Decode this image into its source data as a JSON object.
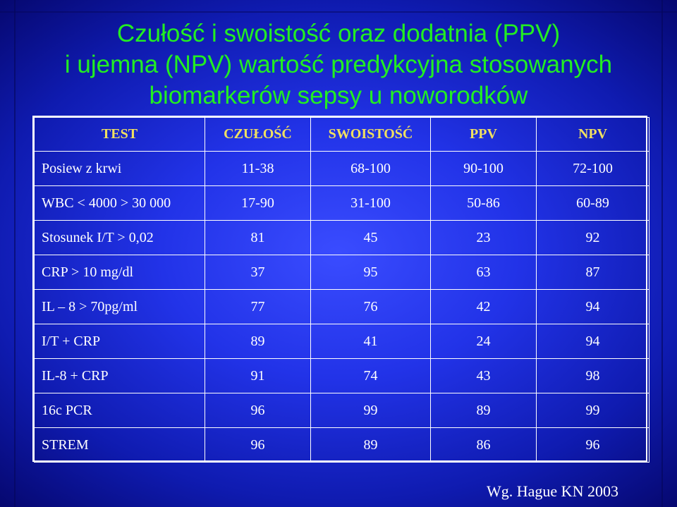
{
  "title": {
    "line1": "Czułość i swoistość oraz dodatnia (PPV)",
    "line2": "i ujemna (NPV) wartość predykcyjna stosowanych",
    "line3": "biomarkerów sepsy u noworodków"
  },
  "table": {
    "headers": [
      "TEST",
      "CZUŁOŚĆ",
      "SWOISTOŚĆ",
      "PPV",
      "NPV"
    ],
    "rows": [
      [
        "Posiew z krwi",
        "11-38",
        "68-100",
        "90-100",
        "72-100"
      ],
      [
        "WBC < 4000 > 30 000",
        "17-90",
        "31-100",
        "50-86",
        "60-89"
      ],
      [
        "Stosunek I/T > 0,02",
        "81",
        "45",
        "23",
        "92"
      ],
      [
        "CRP > 10 mg/dl",
        "37",
        "95",
        "63",
        "87"
      ],
      [
        "IL – 8 > 70pg/ml",
        "77",
        "76",
        "42",
        "94"
      ],
      [
        "I/T + CRP",
        "89",
        "41",
        "24",
        "94"
      ],
      [
        "IL-8 + CRP",
        "91",
        "74",
        "43",
        "98"
      ],
      [
        "16c PCR",
        "96",
        "99",
        "89",
        "99"
      ],
      [
        "STREM",
        "96",
        "89",
        "86",
        "96"
      ]
    ]
  },
  "source": "Wg. Hague KN 2003",
  "colors": {
    "title": "#22ee22",
    "header": "#f0e060",
    "text": "#ffffff",
    "background": "#2233e8"
  }
}
